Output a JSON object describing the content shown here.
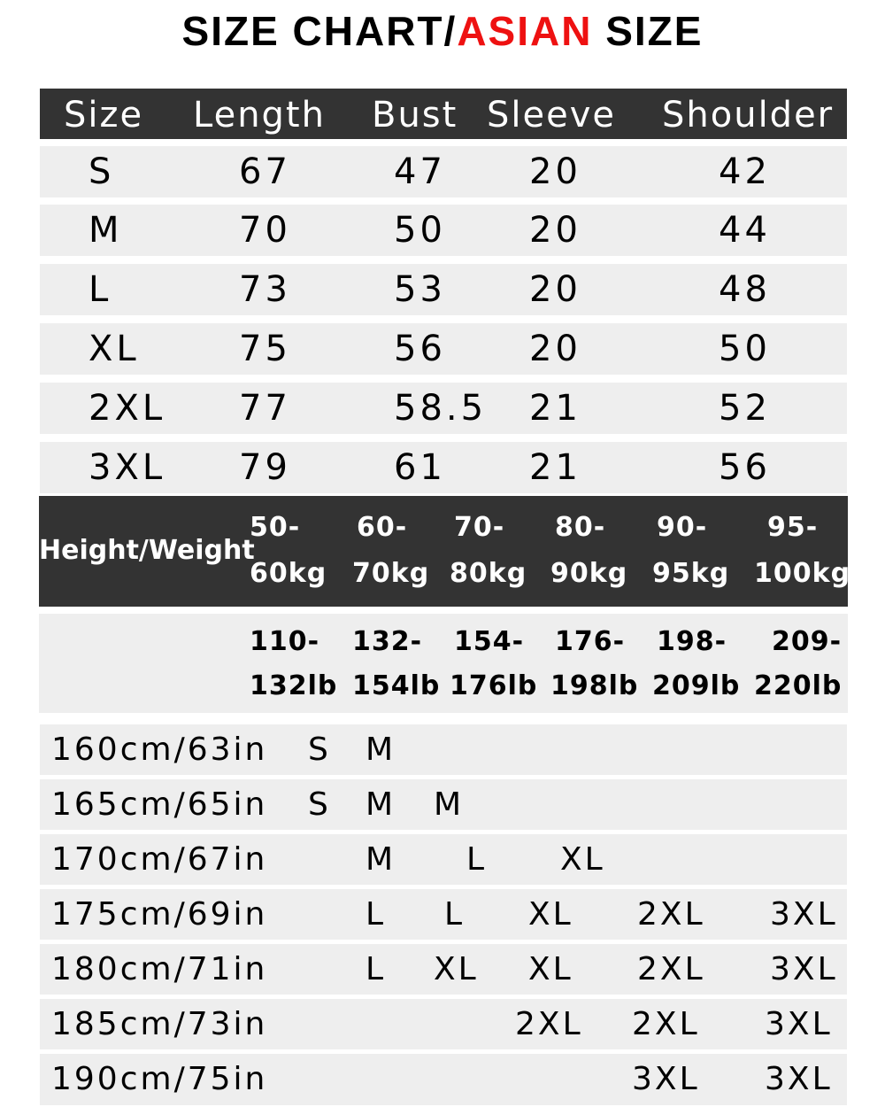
{
  "title": {
    "part1": "SIZE CHART/",
    "part2": "ASIAN",
    "part3": " SIZE",
    "accent_color": "#ee1111"
  },
  "size_table": {
    "headers": [
      "Size",
      "Length",
      "Bust",
      "Sleeve",
      "Shoulder"
    ],
    "rows": [
      [
        "S",
        "67",
        "47",
        "20",
        "42"
      ],
      [
        "M",
        "70",
        "50",
        "20",
        "44"
      ],
      [
        "L",
        "73",
        "53",
        "20",
        "48"
      ],
      [
        "XL",
        "75",
        "56",
        "20",
        "50"
      ],
      [
        "2XL",
        "77",
        "58.5",
        "21",
        "52"
      ],
      [
        "3XL",
        "79",
        "61",
        "21",
        "56"
      ]
    ]
  },
  "weight": {
    "label": "Height/Weight",
    "kg": [
      [
        "50-",
        "60kg"
      ],
      [
        "60-",
        "70kg"
      ],
      [
        "70-",
        "80kg"
      ],
      [
        "80-",
        "90kg"
      ],
      [
        "90-",
        "95kg"
      ],
      [
        "95-",
        "100kg"
      ]
    ],
    "lb": [
      [
        "110-",
        "132lb"
      ],
      [
        "132-",
        "154lb"
      ],
      [
        "154-",
        "176lb"
      ],
      [
        "176-",
        "198lb"
      ],
      [
        "198-",
        "209lb"
      ],
      [
        "209-",
        "220lb"
      ]
    ]
  },
  "heights": [
    {
      "label": "160cm/63in",
      "sizes": [
        "S",
        "M"
      ]
    },
    {
      "label": "165cm/65in",
      "sizes": [
        "S",
        "M",
        "M"
      ]
    },
    {
      "label": "170cm/67in",
      "sizes": [
        "M",
        "L",
        "XL"
      ]
    },
    {
      "label": "175cm/69in",
      "sizes": [
        "L",
        "L",
        "XL",
        "2XL",
        "3XL"
      ]
    },
    {
      "label": "180cm/71in",
      "sizes": [
        "L",
        "XL",
        "XL",
        "2XL",
        "3XL"
      ]
    },
    {
      "label": "185cm/73in",
      "sizes": [
        "2XL",
        "2XL",
        "3XL"
      ]
    },
    {
      "label": "190cm/75in",
      "sizes": [
        "3XL",
        "3XL"
      ]
    }
  ]
}
